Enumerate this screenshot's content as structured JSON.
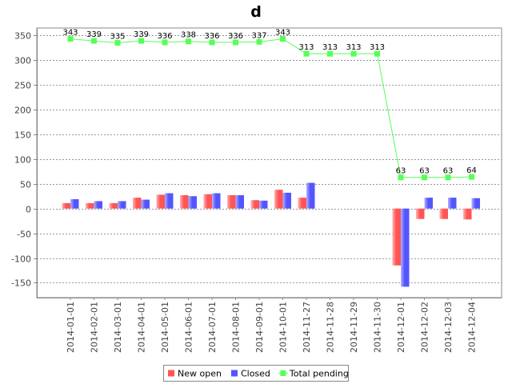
{
  "chart_data": {
    "type": "bar",
    "title": "d",
    "xlabel": "",
    "ylabel": "",
    "categories": [
      "2014-01-01",
      "2014-02-01",
      "2014-03-01",
      "2014-04-01",
      "2014-05-01",
      "2014-06-01",
      "2014-07-01",
      "2014-08-01",
      "2014-09-01",
      "2014-10-01",
      "2014-11-27",
      "2014-11-28",
      "2014-11-29",
      "2014-11-30",
      "2014-12-01",
      "2014-12-02",
      "2014-12-03",
      "2014-12-04"
    ],
    "ylim": [
      -180,
      365
    ],
    "yticks": [
      350,
      300,
      250,
      200,
      150,
      100,
      50,
      0,
      -50,
      -100,
      -150
    ],
    "grid": true,
    "legend_position": "bottom-center",
    "series": [
      {
        "name": "New open",
        "type": "bar",
        "color": "#ff5555",
        "values": [
          11,
          11,
          11,
          22,
          28,
          27,
          29,
          27,
          17,
          38,
          22,
          0,
          0,
          0,
          -115,
          -21,
          -21,
          -22
        ]
      },
      {
        "name": "Closed",
        "type": "bar",
        "color": "#5555ff",
        "values": [
          19,
          15,
          15,
          18,
          31,
          25,
          31,
          27,
          16,
          32,
          52,
          0,
          0,
          0,
          -158,
          22,
          22,
          21
        ]
      },
      {
        "name": "Total pending",
        "type": "line",
        "color": "#55ff55",
        "values": [
          343,
          339,
          335,
          339,
          336,
          338,
          336,
          336,
          337,
          343,
          313,
          313,
          313,
          313,
          63,
          63,
          63,
          64
        ],
        "labels": [
          "343",
          "339",
          "335",
          "339",
          "336",
          "338",
          "336",
          "336",
          "337",
          "343",
          "313",
          "313",
          "313",
          "313",
          "63",
          "63",
          "63",
          "64"
        ]
      }
    ]
  }
}
